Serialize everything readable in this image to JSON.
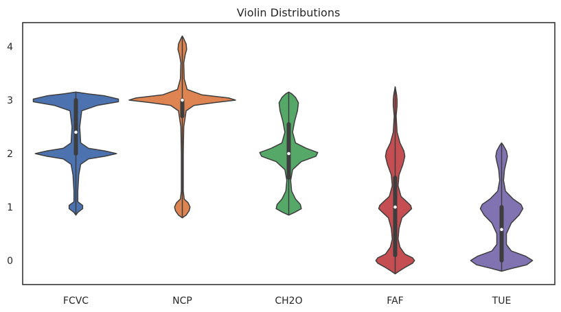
{
  "chart_data": {
    "type": "violin",
    "title": "Violin Distributions",
    "xlabel": "",
    "ylabel": "",
    "categories": [
      "FCVC",
      "NCP",
      "CH2O",
      "FAF",
      "TUE"
    ],
    "yticks": [
      0,
      1,
      2,
      3,
      4
    ],
    "ylim": [
      -0.45,
      4.45
    ],
    "grid": false,
    "legend": "none",
    "series": [
      {
        "category": "FCVC",
        "color": "#4c72b0",
        "range": [
          0.85,
          3.15
        ],
        "quartiles": [
          2.0,
          3.0
        ],
        "median": 2.4,
        "profile": [
          [
            0.85,
            0.0
          ],
          [
            0.9,
            0.02
          ],
          [
            0.97,
            0.07
          ],
          [
            1.03,
            0.07
          ],
          [
            1.1,
            0.02
          ],
          [
            1.3,
            0.02
          ],
          [
            1.6,
            0.03
          ],
          [
            1.8,
            0.05
          ],
          [
            1.9,
            0.13
          ],
          [
            1.95,
            0.3
          ],
          [
            2.0,
            0.42
          ],
          [
            2.05,
            0.3
          ],
          [
            2.1,
            0.13
          ],
          [
            2.2,
            0.05
          ],
          [
            2.5,
            0.04
          ],
          [
            2.8,
            0.06
          ],
          [
            2.9,
            0.22
          ],
          [
            2.97,
            0.44
          ],
          [
            3.02,
            0.44
          ],
          [
            3.08,
            0.3
          ],
          [
            3.12,
            0.12
          ],
          [
            3.15,
            0.0
          ]
        ]
      },
      {
        "category": "NCP",
        "color": "#dd8452",
        "range": [
          0.8,
          4.2
        ],
        "quartiles": [
          2.7,
          3.0
        ],
        "median": 3.0,
        "profile": [
          [
            0.8,
            0.0
          ],
          [
            0.85,
            0.04
          ],
          [
            0.93,
            0.07
          ],
          [
            1.0,
            0.08
          ],
          [
            1.08,
            0.06
          ],
          [
            1.15,
            0.02
          ],
          [
            1.3,
            0.01
          ],
          [
            1.6,
            0.01
          ],
          [
            2.0,
            0.01
          ],
          [
            2.5,
            0.015
          ],
          [
            2.8,
            0.04
          ],
          [
            2.9,
            0.12
          ],
          [
            2.95,
            0.32
          ],
          [
            3.0,
            0.55
          ],
          [
            3.04,
            0.48
          ],
          [
            3.1,
            0.2
          ],
          [
            3.2,
            0.05
          ],
          [
            3.4,
            0.02
          ],
          [
            3.7,
            0.015
          ],
          [
            3.85,
            0.03
          ],
          [
            3.95,
            0.045
          ],
          [
            4.05,
            0.04
          ],
          [
            4.15,
            0.015
          ],
          [
            4.2,
            0.0
          ]
        ]
      },
      {
        "category": "CH2O",
        "color": "#55a868",
        "range": [
          0.85,
          3.15
        ],
        "quartiles": [
          1.55,
          2.55
        ],
        "median": 2.0,
        "profile": [
          [
            0.85,
            0.0
          ],
          [
            0.9,
            0.06
          ],
          [
            0.97,
            0.13
          ],
          [
            1.05,
            0.12
          ],
          [
            1.15,
            0.07
          ],
          [
            1.3,
            0.03
          ],
          [
            1.5,
            0.02
          ],
          [
            1.7,
            0.04
          ],
          [
            1.85,
            0.13
          ],
          [
            1.95,
            0.28
          ],
          [
            2.02,
            0.3
          ],
          [
            2.1,
            0.18
          ],
          [
            2.2,
            0.07
          ],
          [
            2.4,
            0.04
          ],
          [
            2.6,
            0.06
          ],
          [
            2.8,
            0.09
          ],
          [
            2.95,
            0.1
          ],
          [
            3.05,
            0.07
          ],
          [
            3.12,
            0.03
          ],
          [
            3.15,
            0.0
          ]
        ]
      },
      {
        "category": "FAF",
        "color": "#c44e52",
        "range": [
          -0.25,
          3.25
        ],
        "quartiles": [
          0.1,
          1.55
        ],
        "median": 1.0,
        "profile": [
          [
            -0.25,
            0.0
          ],
          [
            -0.2,
            0.04
          ],
          [
            -0.12,
            0.11
          ],
          [
            -0.05,
            0.18
          ],
          [
            0.0,
            0.2
          ],
          [
            0.05,
            0.18
          ],
          [
            0.12,
            0.1
          ],
          [
            0.25,
            0.05
          ],
          [
            0.4,
            0.03
          ],
          [
            0.6,
            0.04
          ],
          [
            0.8,
            0.07
          ],
          [
            0.9,
            0.13
          ],
          [
            0.97,
            0.17
          ],
          [
            1.03,
            0.16
          ],
          [
            1.1,
            0.12
          ],
          [
            1.2,
            0.06
          ],
          [
            1.4,
            0.03
          ],
          [
            1.6,
            0.04
          ],
          [
            1.8,
            0.08
          ],
          [
            1.95,
            0.1
          ],
          [
            2.05,
            0.09
          ],
          [
            2.2,
            0.05
          ],
          [
            2.4,
            0.02
          ],
          [
            2.7,
            0.01
          ],
          [
            2.9,
            0.02
          ],
          [
            3.0,
            0.02
          ],
          [
            3.1,
            0.015
          ],
          [
            3.25,
            0.0
          ]
        ]
      },
      {
        "category": "TUE",
        "color": "#8172b2",
        "range": [
          -0.2,
          2.2
        ],
        "quartiles": [
          0.0,
          1.0
        ],
        "median": 0.58,
        "profile": [
          [
            -0.2,
            0.0
          ],
          [
            -0.15,
            0.1
          ],
          [
            -0.08,
            0.26
          ],
          [
            0.0,
            0.32
          ],
          [
            0.08,
            0.25
          ],
          [
            0.18,
            0.1
          ],
          [
            0.3,
            0.05
          ],
          [
            0.5,
            0.05
          ],
          [
            0.7,
            0.1
          ],
          [
            0.85,
            0.18
          ],
          [
            0.97,
            0.22
          ],
          [
            1.05,
            0.2
          ],
          [
            1.15,
            0.12
          ],
          [
            1.3,
            0.04
          ],
          [
            1.5,
            0.02
          ],
          [
            1.7,
            0.03
          ],
          [
            1.85,
            0.05
          ],
          [
            1.95,
            0.06
          ],
          [
            2.05,
            0.05
          ],
          [
            2.15,
            0.02
          ],
          [
            2.2,
            0.0
          ]
        ]
      }
    ]
  }
}
